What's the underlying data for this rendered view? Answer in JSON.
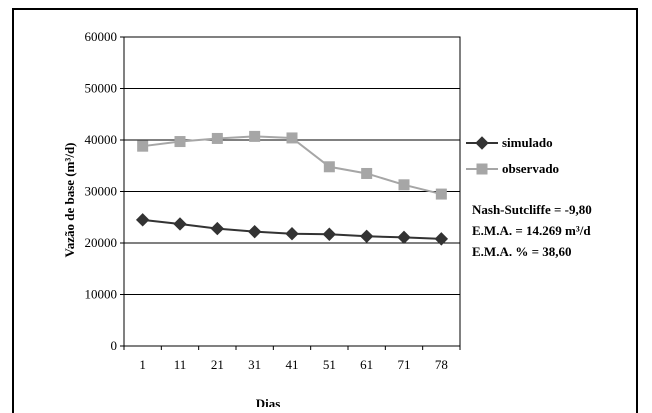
{
  "chart_data": {
    "type": "line",
    "xlabel": "Dias",
    "ylabel": "Vazão de base (m³/d)",
    "categories": [
      "1",
      "11",
      "21",
      "31",
      "41",
      "51",
      "61",
      "71",
      "78"
    ],
    "ylim": [
      0,
      60000
    ],
    "yticks": [
      "0",
      "10000",
      "20000",
      "30000",
      "40000",
      "50000",
      "60000"
    ],
    "grid": true,
    "legend_position": "right",
    "series": [
      {
        "name": "simulado",
        "marker": "diamond",
        "color": "#333333",
        "values": [
          24500,
          23700,
          22800,
          22200,
          21800,
          21700,
          21300,
          21100,
          20800
        ]
      },
      {
        "name": "observado",
        "marker": "square",
        "color": "#a6a6a6",
        "values": [
          38800,
          39700,
          40300,
          40700,
          40400,
          34800,
          33500,
          31300,
          29500
        ]
      }
    ],
    "annotations": [
      "Nash-Sutcliffe = -9,80",
      "E.M.A. = 14.269 m³/d",
      "E.M.A. % = 38,60"
    ]
  }
}
